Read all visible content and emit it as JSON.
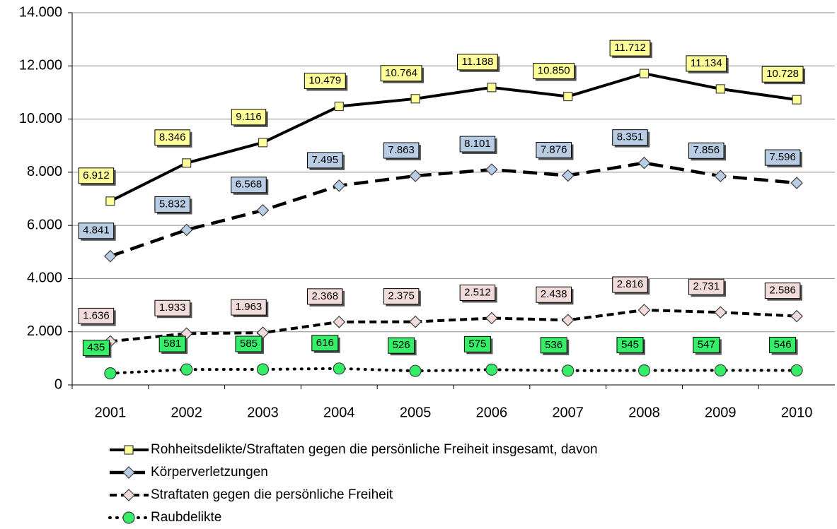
{
  "chart_data": {
    "type": "line",
    "categories": [
      "2001",
      "2002",
      "2003",
      "2004",
      "2005",
      "2006",
      "2007",
      "2008",
      "2009",
      "2010"
    ],
    "ylim": [
      0,
      14000
    ],
    "yticks": [
      0,
      {
        "value": 2000,
        "label": "2.000"
      },
      {
        "value": 4000,
        "label": "4.000"
      },
      {
        "value": 6000,
        "label": "6.000"
      },
      {
        "value": 8000,
        "label": "8.000"
      },
      {
        "value": 10000,
        "label": "10.000"
      },
      {
        "value": 12000,
        "label": "12.000"
      },
      {
        "value": 14000,
        "label": "14.000"
      }
    ],
    "grid": true,
    "series": [
      {
        "name": "Rohheitsdelikte/Straftaten gegen die persönliche Freiheit insgesamt, davon",
        "color": "#000000",
        "marker": "square",
        "marker_color": "#ffff99",
        "line": "solid",
        "label_color": "#ffff99",
        "values": [
          6912,
          8346,
          9116,
          10479,
          10764,
          11188,
          10850,
          11712,
          11134,
          10728
        ],
        "value_labels": [
          "6.912",
          "8.346",
          "9.116",
          "10.479",
          "10.764",
          "11.188",
          "10.850",
          "11.712",
          "11.134",
          "10.728"
        ]
      },
      {
        "name": "Körperverletzungen",
        "color": "#000000",
        "marker": "diamond",
        "marker_color": "#b8cce4",
        "line": "long-dash",
        "label_color": "#b8cce4",
        "values": [
          4841,
          5832,
          6568,
          7495,
          7863,
          8101,
          7876,
          8351,
          7856,
          7596
        ],
        "value_labels": [
          "4.841",
          "5.832",
          "6.568",
          "7.495",
          "7.863",
          "8.101",
          "7.876",
          "8.351",
          "7.856",
          "7.596"
        ]
      },
      {
        "name": "Straftaten gegen die persönliche Freiheit",
        "color": "#000000",
        "marker": "diamond",
        "marker_color": "#f2dcdb",
        "line": "dash",
        "label_color": "#f2dcdb",
        "values": [
          1636,
          1933,
          1963,
          2368,
          2375,
          2512,
          2438,
          2816,
          2731,
          2586
        ],
        "value_labels": [
          "1.636",
          "1.933",
          "1.963",
          "2.368",
          "2.375",
          "2.512",
          "2.438",
          "2.816",
          "2.731",
          "2.586"
        ]
      },
      {
        "name": "Raubdelikte",
        "color": "#000000",
        "marker": "circle",
        "marker_color": "#33ee66",
        "line": "dot",
        "label_color": "#33ee66",
        "values": [
          435,
          581,
          585,
          616,
          526,
          575,
          536,
          545,
          547,
          546
        ]
      }
    ]
  }
}
